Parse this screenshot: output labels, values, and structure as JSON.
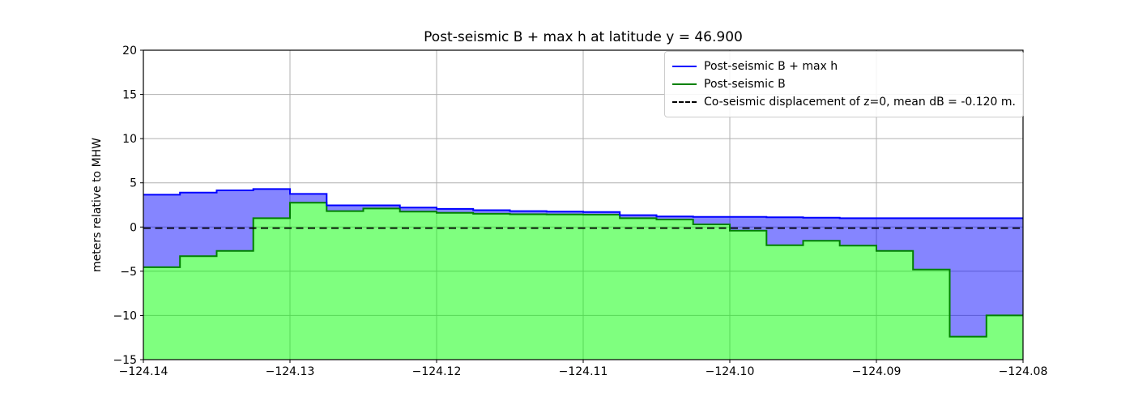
{
  "chart_data": {
    "type": "area",
    "title": "Post-seismic B + max h at latitude y = 46.900",
    "xlabel": "",
    "ylabel": "meters relative to MHW",
    "xlim": [
      -124.14,
      -124.08
    ],
    "ylim": [
      -15,
      20
    ],
    "grid": true,
    "grid_color": "#b0b0b0",
    "x_ticks": [
      -124.14,
      -124.13,
      -124.12,
      -124.11,
      -124.1,
      -124.09,
      -124.08
    ],
    "x_tick_labels": [
      "−124.14",
      "−124.13",
      "−124.12",
      "−124.11",
      "−124.10",
      "−124.09",
      "−124.08"
    ],
    "y_ticks": [
      -15,
      -10,
      -5,
      0,
      5,
      10,
      15,
      20
    ],
    "y_tick_labels": [
      "−15",
      "−10",
      "−5",
      "0",
      "5",
      "10",
      "15",
      "20"
    ],
    "step_x_start": -124.14,
    "step_dx": 0.0025,
    "series": [
      {
        "name": "Post-seismic B + max h",
        "line_color": "#0000ff",
        "fill_color": "rgba(0,0,255,0.48)",
        "style": "solid",
        "values": [
          3.65,
          3.9,
          4.15,
          4.3,
          3.75,
          2.45,
          2.45,
          2.2,
          2.05,
          1.9,
          1.8,
          1.75,
          1.7,
          1.35,
          1.2,
          1.15,
          1.15,
          1.1,
          1.05,
          1.0,
          1.0,
          1.0,
          1.0,
          1.0
        ]
      },
      {
        "name": "Post-seismic B",
        "line_color": "#008000",
        "fill_color": "rgba(0,255,0,0.5)",
        "style": "solid",
        "values": [
          -4.55,
          -3.3,
          -2.7,
          1.0,
          2.75,
          1.8,
          2.1,
          1.75,
          1.6,
          1.5,
          1.45,
          1.42,
          1.4,
          1.0,
          0.85,
          0.3,
          -0.4,
          -2.05,
          -1.55,
          -2.1,
          -2.7,
          -4.8,
          -12.4,
          -10.0
        ]
      },
      {
        "name": "Co-seismic displacement of z=0, mean dB = -0.120 m.",
        "line_color": "#000000",
        "style": "dashed",
        "constant_value": -0.12
      }
    ],
    "mean_dB": -0.12,
    "legend": {
      "position": "upper right",
      "entries": [
        "Post-seismic B + max h",
        "Post-seismic B",
        "Co-seismic displacement of z=0, mean dB = -0.120 m."
      ]
    }
  }
}
